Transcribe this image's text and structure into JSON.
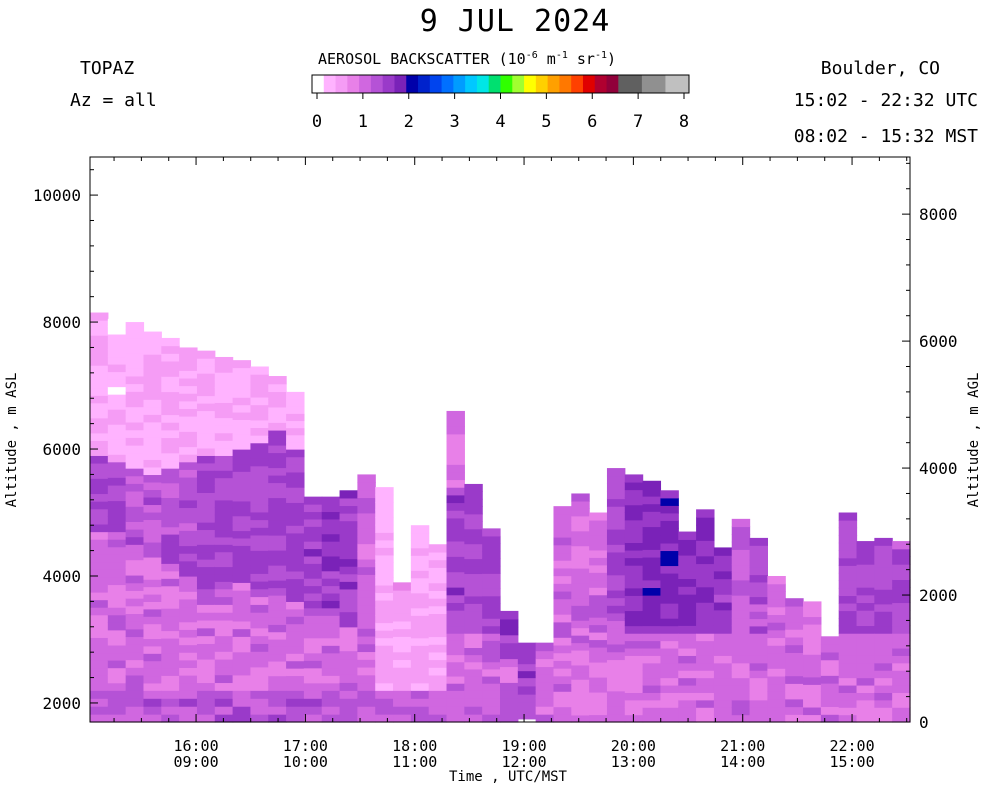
{
  "header": {
    "title": "9 JUL 2024",
    "instrument": "TOPAZ",
    "azimuth": "Az = all",
    "location": "Boulder, CO",
    "utc_range": "15:02 - 22:32 UTC",
    "mst_range": "08:02 - 15:32 MST"
  },
  "colorbar": {
    "title": "AEROSOL BACKSCATTER (10",
    "title_exp": "-6",
    "title_unit1": " m",
    "title_unit1_exp": "-1",
    "title_unit2": " sr",
    "title_unit2_exp": "-1",
    "title_end": ")",
    "ticks": [
      "0",
      "1",
      "2",
      "3",
      "4",
      "5",
      "6",
      "7",
      "8"
    ],
    "colors": [
      "#ffffff",
      "#ffb3ff",
      "#f59cf5",
      "#e880e8",
      "#d067e0",
      "#b552d6",
      "#9a3ac9",
      "#7a22b8",
      "#0000aa",
      "#0022cc",
      "#0044ee",
      "#0070ff",
      "#009cff",
      "#00c8ff",
      "#00e6e6",
      "#00e070",
      "#30ff00",
      "#a0ff30",
      "#ffff00",
      "#ffd000",
      "#ffa000",
      "#ff7800",
      "#ff4000",
      "#e00000",
      "#b00030",
      "#90003a",
      "#606060",
      "#606060",
      "#909090",
      "#909090",
      "#c0c0c0",
      "#c0c0c0"
    ]
  },
  "chart_data": {
    "type": "heatmap",
    "title": "9 JUL 2024",
    "xlabel": "Time , UTC/MST",
    "ylabel_left": "Altitude , m ASL",
    "ylabel_right": "Altitude , m AGL",
    "x_range_utc_hours": [
      15.03,
      22.53
    ],
    "y_range_asl_m": [
      1700,
      10600
    ],
    "agl_offset_m": 1700,
    "x_ticks_utc": [
      "16:00",
      "17:00",
      "18:00",
      "19:00",
      "20:00",
      "21:00",
      "22:00"
    ],
    "x_ticks_mst": [
      "09:00",
      "10:00",
      "11:00",
      "12:00",
      "13:00",
      "14:00",
      "15:00"
    ],
    "y_ticks_left": [
      2000,
      4000,
      6000,
      8000,
      10000
    ],
    "y_ticks_right": [
      0,
      2000,
      4000,
      6000,
      8000
    ],
    "colorbar_range": [
      0,
      8
    ],
    "data_top_profile": [
      {
        "t": "15:02",
        "top_m": 8150,
        "layers": [
          {
            "base": 1700,
            "top": 2200,
            "v": 1.2
          },
          {
            "base": 2200,
            "top": 4700,
            "v": 0.95
          },
          {
            "base": 4700,
            "top": 5900,
            "v": 1.35
          },
          {
            "base": 5900,
            "top": 8150,
            "v": 0.3
          }
        ]
      },
      {
        "t": "15:12",
        "top_m": 8050,
        "layers": [
          {
            "base": 1700,
            "top": 2200,
            "v": 1.2
          },
          {
            "base": 2200,
            "top": 4700,
            "v": 0.95
          },
          {
            "base": 4700,
            "top": 5800,
            "v": 1.3
          },
          {
            "base": 5800,
            "top": 8050,
            "v": 0.3
          }
        ]
      },
      {
        "t": "15:22",
        "top_m": 8000,
        "layers": [
          {
            "base": 1700,
            "top": 2200,
            "v": 1.2
          },
          {
            "base": 2200,
            "top": 4500,
            "v": 0.95
          },
          {
            "base": 4500,
            "top": 5700,
            "v": 1.25
          },
          {
            "base": 5700,
            "top": 8000,
            "v": 0.35
          }
        ]
      },
      {
        "t": "15:32",
        "top_m": 7850,
        "layers": [
          {
            "base": 1700,
            "top": 2200,
            "v": 1.2
          },
          {
            "base": 2200,
            "top": 4300,
            "v": 0.95
          },
          {
            "base": 4300,
            "top": 5600,
            "v": 1.2
          },
          {
            "base": 5600,
            "top": 7850,
            "v": 0.35
          }
        ]
      },
      {
        "t": "15:42",
        "top_m": 7750,
        "layers": [
          {
            "base": 1700,
            "top": 2200,
            "v": 1.2
          },
          {
            "base": 2200,
            "top": 4200,
            "v": 0.95
          },
          {
            "base": 4200,
            "top": 5700,
            "v": 1.25
          },
          {
            "base": 5700,
            "top": 7750,
            "v": 0.35
          }
        ]
      },
      {
        "t": "15:52",
        "top_m": 7600,
        "layers": [
          {
            "base": 1700,
            "top": 2200,
            "v": 1.2
          },
          {
            "base": 2200,
            "top": 4000,
            "v": 0.95
          },
          {
            "base": 4000,
            "top": 5800,
            "v": 1.3
          },
          {
            "base": 5800,
            "top": 7600,
            "v": 0.35
          }
        ]
      },
      {
        "t": "16:02",
        "top_m": 7550,
        "layers": [
          {
            "base": 1700,
            "top": 2200,
            "v": 1.2
          },
          {
            "base": 2200,
            "top": 3800,
            "v": 0.95
          },
          {
            "base": 3800,
            "top": 5900,
            "v": 1.35
          },
          {
            "base": 5900,
            "top": 7550,
            "v": 0.35
          }
        ]
      },
      {
        "t": "16:12",
        "top_m": 7450,
        "layers": [
          {
            "base": 1700,
            "top": 2200,
            "v": 1.25
          },
          {
            "base": 2200,
            "top": 3800,
            "v": 0.95
          },
          {
            "base": 3800,
            "top": 5900,
            "v": 1.35
          },
          {
            "base": 5900,
            "top": 7450,
            "v": 0.35
          }
        ]
      },
      {
        "t": "16:22",
        "top_m": 7400,
        "layers": [
          {
            "base": 1700,
            "top": 2200,
            "v": 1.25
          },
          {
            "base": 2200,
            "top": 3900,
            "v": 0.95
          },
          {
            "base": 3900,
            "top": 6000,
            "v": 1.35
          },
          {
            "base": 6000,
            "top": 7400,
            "v": 0.35
          }
        ]
      },
      {
        "t": "16:32",
        "top_m": 7300,
        "layers": [
          {
            "base": 1700,
            "top": 2200,
            "v": 1.25
          },
          {
            "base": 2200,
            "top": 3800,
            "v": 0.95
          },
          {
            "base": 3800,
            "top": 6100,
            "v": 1.35
          },
          {
            "base": 6100,
            "top": 7300,
            "v": 0.35
          }
        ]
      },
      {
        "t": "16:42",
        "top_m": 7150,
        "layers": [
          {
            "base": 1700,
            "top": 2200,
            "v": 1.25
          },
          {
            "base": 2200,
            "top": 3700,
            "v": 0.95
          },
          {
            "base": 3700,
            "top": 6300,
            "v": 1.4
          },
          {
            "base": 6300,
            "top": 7150,
            "v": 0.35
          }
        ]
      },
      {
        "t": "16:52",
        "top_m": 6900,
        "layers": [
          {
            "base": 1700,
            "top": 2200,
            "v": 1.25
          },
          {
            "base": 2200,
            "top": 3600,
            "v": 0.95
          },
          {
            "base": 3600,
            "top": 6000,
            "v": 1.4
          },
          {
            "base": 6000,
            "top": 6900,
            "v": 0.4
          }
        ]
      },
      {
        "t": "17:02",
        "top_m": 5250,
        "layers": [
          {
            "base": 1700,
            "top": 2200,
            "v": 1.2
          },
          {
            "base": 2200,
            "top": 3500,
            "v": 0.95
          },
          {
            "base": 3500,
            "top": 5250,
            "v": 1.45
          }
        ]
      },
      {
        "t": "17:12",
        "top_m": 5250,
        "layers": [
          {
            "base": 1700,
            "top": 2200,
            "v": 1.2
          },
          {
            "base": 2200,
            "top": 3500,
            "v": 0.95
          },
          {
            "base": 3500,
            "top": 5250,
            "v": 1.5
          }
        ]
      },
      {
        "t": "17:22",
        "top_m": 5350,
        "layers": [
          {
            "base": 1700,
            "top": 2200,
            "v": 1.2
          },
          {
            "base": 2200,
            "top": 3200,
            "v": 0.95
          },
          {
            "base": 3200,
            "top": 5350,
            "v": 1.45
          }
        ]
      },
      {
        "t": "17:32",
        "top_m": 5600,
        "layers": [
          {
            "base": 1700,
            "top": 2200,
            "v": 1.2
          },
          {
            "base": 2200,
            "top": 3300,
            "v": 0.95
          },
          {
            "base": 3300,
            "top": 5600,
            "v": 1.0
          }
        ]
      },
      {
        "t": "17:42",
        "top_m": 5400,
        "layers": [
          {
            "base": 1700,
            "top": 2200,
            "v": 1.1
          },
          {
            "base": 2200,
            "top": 5400,
            "v": 0.35
          }
        ]
      },
      {
        "t": "17:52",
        "top_m": 3900,
        "layers": [
          {
            "base": 1700,
            "top": 2200,
            "v": 1.1
          },
          {
            "base": 2200,
            "top": 3900,
            "v": 0.45
          }
        ]
      },
      {
        "t": "18:02",
        "top_m": 4800,
        "layers": [
          {
            "base": 1700,
            "top": 2200,
            "v": 1.1
          },
          {
            "base": 2200,
            "top": 4800,
            "v": 0.4
          }
        ]
      },
      {
        "t": "18:12",
        "top_m": 4500,
        "layers": [
          {
            "base": 1700,
            "top": 2200,
            "v": 1.1
          },
          {
            "base": 2200,
            "top": 4500,
            "v": 0.4
          }
        ]
      },
      {
        "t": "18:22",
        "top_m": 6600,
        "layers": [
          {
            "base": 1700,
            "top": 2200,
            "v": 1.1
          },
          {
            "base": 2200,
            "top": 3100,
            "v": 0.95
          },
          {
            "base": 3100,
            "top": 5400,
            "v": 1.45
          },
          {
            "base": 5400,
            "top": 6600,
            "v": 0.8
          }
        ]
      },
      {
        "t": "18:32",
        "top_m": 5450,
        "layers": [
          {
            "base": 1700,
            "top": 2200,
            "v": 1.1
          },
          {
            "base": 2200,
            "top": 3100,
            "v": 0.95
          },
          {
            "base": 3100,
            "top": 5450,
            "v": 1.4
          }
        ]
      },
      {
        "t": "18:42",
        "top_m": 4750,
        "layers": [
          {
            "base": 1700,
            "top": 2200,
            "v": 1.1
          },
          {
            "base": 2200,
            "top": 3100,
            "v": 0.95
          },
          {
            "base": 3100,
            "top": 4750,
            "v": 1.35
          }
        ]
      },
      {
        "t": "18:52",
        "top_m": 3450,
        "layers": [
          {
            "base": 1700,
            "top": 2200,
            "v": 1.1
          },
          {
            "base": 2200,
            "top": 2700,
            "v": 0.95
          },
          {
            "base": 2700,
            "top": 3450,
            "v": 1.45
          }
        ]
      },
      {
        "t": "19:02",
        "top_m": 2950,
        "layers": [
          {
            "base": 1750,
            "top": 2400,
            "v": 1.2
          },
          {
            "base": 2400,
            "top": 2950,
            "v": 1.45
          }
        ]
      },
      {
        "t": "19:12",
        "top_m": 2950,
        "layers": [
          {
            "base": 1700,
            "top": 2950,
            "v": 0.95
          }
        ]
      },
      {
        "t": "19:22",
        "top_m": 5100,
        "layers": [
          {
            "base": 1700,
            "top": 5100,
            "v": 0.95
          }
        ]
      },
      {
        "t": "19:32",
        "top_m": 5300,
        "layers": [
          {
            "base": 1700,
            "top": 2600,
            "v": 0.95
          },
          {
            "base": 2600,
            "top": 5300,
            "v": 0.95
          }
        ]
      },
      {
        "t": "19:42",
        "top_m": 5000,
        "layers": [
          {
            "base": 1700,
            "top": 3000,
            "v": 0.95
          },
          {
            "base": 3000,
            "top": 5000,
            "v": 0.95
          }
        ]
      },
      {
        "t": "19:52",
        "top_m": 5700,
        "layers": [
          {
            "base": 1700,
            "top": 3300,
            "v": 0.95
          },
          {
            "base": 3300,
            "top": 5700,
            "v": 1.4
          }
        ]
      },
      {
        "t": "20:02",
        "top_m": 5600,
        "layers": [
          {
            "base": 1700,
            "top": 3100,
            "v": 0.95
          },
          {
            "base": 3100,
            "top": 5600,
            "v": 1.55
          }
        ]
      },
      {
        "t": "20:12",
        "top_m": 5500,
        "layers": [
          {
            "base": 1700,
            "top": 3100,
            "v": 0.95
          },
          {
            "base": 3100,
            "top": 5500,
            "v": 1.7
          }
        ]
      },
      {
        "t": "20:22",
        "top_m": 5350,
        "layers": [
          {
            "base": 1700,
            "top": 3100,
            "v": 0.95
          },
          {
            "base": 3100,
            "top": 5350,
            "v": 1.7
          }
        ]
      },
      {
        "t": "20:32",
        "top_m": 4700,
        "layers": [
          {
            "base": 1700,
            "top": 3100,
            "v": 0.95
          },
          {
            "base": 3100,
            "top": 4700,
            "v": 1.6
          }
        ]
      },
      {
        "t": "20:42",
        "top_m": 5050,
        "layers": [
          {
            "base": 1700,
            "top": 3100,
            "v": 0.95
          },
          {
            "base": 3100,
            "top": 5050,
            "v": 1.65
          }
        ]
      },
      {
        "t": "20:52",
        "top_m": 4450,
        "layers": [
          {
            "base": 1700,
            "top": 3100,
            "v": 0.95
          },
          {
            "base": 3100,
            "top": 4450,
            "v": 1.55
          }
        ]
      },
      {
        "t": "21:02",
        "top_m": 4900,
        "layers": [
          {
            "base": 1700,
            "top": 3100,
            "v": 0.95
          },
          {
            "base": 3100,
            "top": 4900,
            "v": 1.1
          }
        ]
      },
      {
        "t": "21:12",
        "top_m": 4600,
        "layers": [
          {
            "base": 1700,
            "top": 3100,
            "v": 0.95
          },
          {
            "base": 3100,
            "top": 4600,
            "v": 1.3
          }
        ]
      },
      {
        "t": "21:22",
        "top_m": 4000,
        "layers": [
          {
            "base": 1700,
            "top": 4000,
            "v": 0.95
          }
        ]
      },
      {
        "t": "21:32",
        "top_m": 3650,
        "layers": [
          {
            "base": 1700,
            "top": 3650,
            "v": 0.95
          }
        ]
      },
      {
        "t": "21:42",
        "top_m": 3600,
        "layers": [
          {
            "base": 1700,
            "top": 3600,
            "v": 0.95
          }
        ]
      },
      {
        "t": "21:52",
        "top_m": 3050,
        "layers": [
          {
            "base": 1700,
            "top": 3050,
            "v": 0.95
          }
        ]
      },
      {
        "t": "22:02",
        "top_m": 5000,
        "layers": [
          {
            "base": 1700,
            "top": 3100,
            "v": 0.95
          },
          {
            "base": 3100,
            "top": 5000,
            "v": 1.35
          }
        ]
      },
      {
        "t": "22:12",
        "top_m": 4550,
        "layers": [
          {
            "base": 1700,
            "top": 3100,
            "v": 0.95
          },
          {
            "base": 3100,
            "top": 4550,
            "v": 1.4
          }
        ]
      },
      {
        "t": "22:22",
        "top_m": 4600,
        "layers": [
          {
            "base": 1700,
            "top": 3100,
            "v": 0.95
          },
          {
            "base": 3100,
            "top": 4600,
            "v": 1.4
          }
        ]
      },
      {
        "t": "22:32",
        "top_m": 4550,
        "layers": [
          {
            "base": 1700,
            "top": 3100,
            "v": 0.95
          },
          {
            "base": 3100,
            "top": 4550,
            "v": 1.3
          }
        ]
      }
    ]
  }
}
